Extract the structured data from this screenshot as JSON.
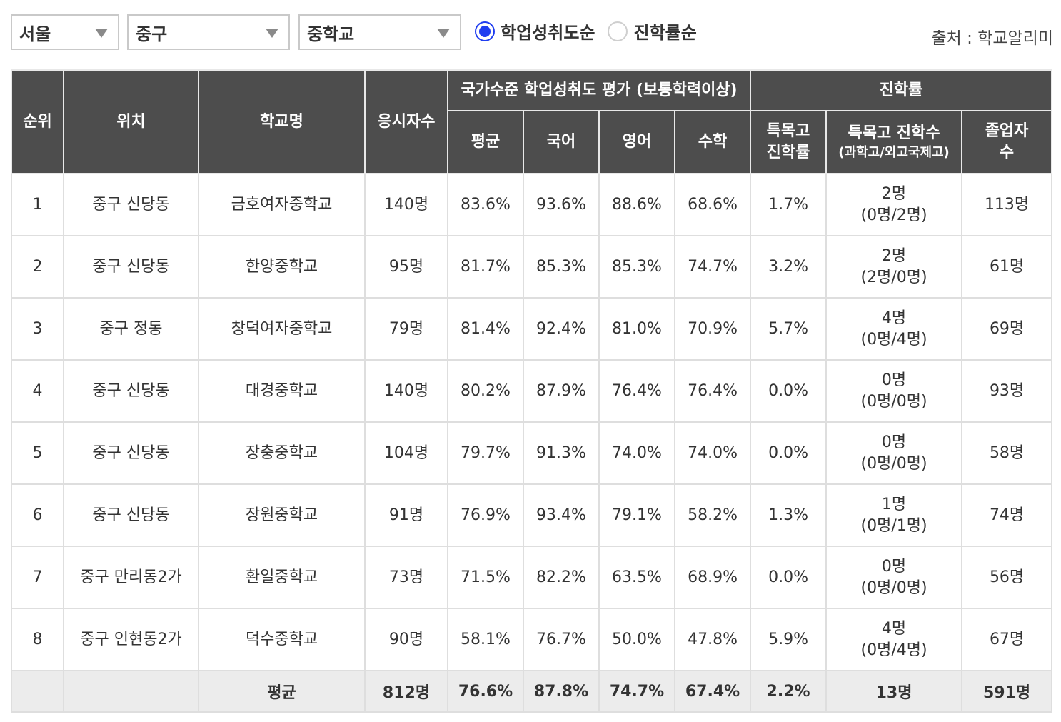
{
  "filters": {
    "region": "서울",
    "district": "중구",
    "school_level": "중학교",
    "sort_options": [
      {
        "label": "학업성취도순",
        "selected": true
      },
      {
        "label": "진학률순",
        "selected": false
      }
    ],
    "source": "출처 : 학교알리미"
  },
  "table": {
    "headers": {
      "rank": "순위",
      "location": "위치",
      "school": "학교명",
      "test_takers": "응시자수",
      "achievement_group": "국가수준 학업성취도 평가 (보통학력이상)",
      "avg": "평균",
      "korean": "국어",
      "english": "영어",
      "math": "수학",
      "admission_group": "진학률",
      "special_rate_line1": "특목고",
      "special_rate_line2": "진학률",
      "special_count": "특목고 진학수",
      "special_count_sub": "(과학고/외고국제고)",
      "graduates_line1": "졸업자",
      "graduates_line2": "수"
    },
    "rows": [
      {
        "rank": "1",
        "location": "중구 신당동",
        "school": "금호여자중학교",
        "test_takers": "140명",
        "avg": "83.6%",
        "korean": "93.6%",
        "english": "88.6%",
        "math": "68.6%",
        "special_rate": "1.7%",
        "special_count": "2명",
        "special_detail": "(0명/2명)",
        "graduates": "113명"
      },
      {
        "rank": "2",
        "location": "중구 신당동",
        "school": "한양중학교",
        "test_takers": "95명",
        "avg": "81.7%",
        "korean": "85.3%",
        "english": "85.3%",
        "math": "74.7%",
        "special_rate": "3.2%",
        "special_count": "2명",
        "special_detail": "(2명/0명)",
        "graduates": "61명"
      },
      {
        "rank": "3",
        "location": "중구 정동",
        "school": "창덕여자중학교",
        "test_takers": "79명",
        "avg": "81.4%",
        "korean": "92.4%",
        "english": "81.0%",
        "math": "70.9%",
        "special_rate": "5.7%",
        "special_count": "4명",
        "special_detail": "(0명/4명)",
        "graduates": "69명"
      },
      {
        "rank": "4",
        "location": "중구 신당동",
        "school": "대경중학교",
        "test_takers": "140명",
        "avg": "80.2%",
        "korean": "87.9%",
        "english": "76.4%",
        "math": "76.4%",
        "special_rate": "0.0%",
        "special_count": "0명",
        "special_detail": "(0명/0명)",
        "graduates": "93명"
      },
      {
        "rank": "5",
        "location": "중구 신당동",
        "school": "장충중학교",
        "test_takers": "104명",
        "avg": "79.7%",
        "korean": "91.3%",
        "english": "74.0%",
        "math": "74.0%",
        "special_rate": "0.0%",
        "special_count": "0명",
        "special_detail": "(0명/0명)",
        "graduates": "58명"
      },
      {
        "rank": "6",
        "location": "중구 신당동",
        "school": "장원중학교",
        "test_takers": "91명",
        "avg": "76.9%",
        "korean": "93.4%",
        "english": "79.1%",
        "math": "58.2%",
        "special_rate": "1.3%",
        "special_count": "1명",
        "special_detail": "(0명/1명)",
        "graduates": "74명"
      },
      {
        "rank": "7",
        "location": "중구 만리동2가",
        "school": "환일중학교",
        "test_takers": "73명",
        "avg": "71.5%",
        "korean": "82.2%",
        "english": "63.5%",
        "math": "68.9%",
        "special_rate": "0.0%",
        "special_count": "0명",
        "special_detail": "(0명/0명)",
        "graduates": "56명"
      },
      {
        "rank": "8",
        "location": "중구 인현동2가",
        "school": "덕수중학교",
        "test_takers": "90명",
        "avg": "58.1%",
        "korean": "76.7%",
        "english": "50.0%",
        "math": "47.8%",
        "special_rate": "5.9%",
        "special_count": "4명",
        "special_detail": "(0명/4명)",
        "graduates": "67명"
      }
    ],
    "footer": {
      "label": "평균",
      "test_takers": "812명",
      "avg": "76.6%",
      "korean": "87.8%",
      "english": "74.7%",
      "math": "67.4%",
      "special_rate": "2.2%",
      "special_count": "13명",
      "graduates": "591명"
    }
  },
  "colors": {
    "header_bg": "#4d4d4d",
    "radio_selected": "#1f3df0",
    "footer_bg": "#ececec"
  }
}
